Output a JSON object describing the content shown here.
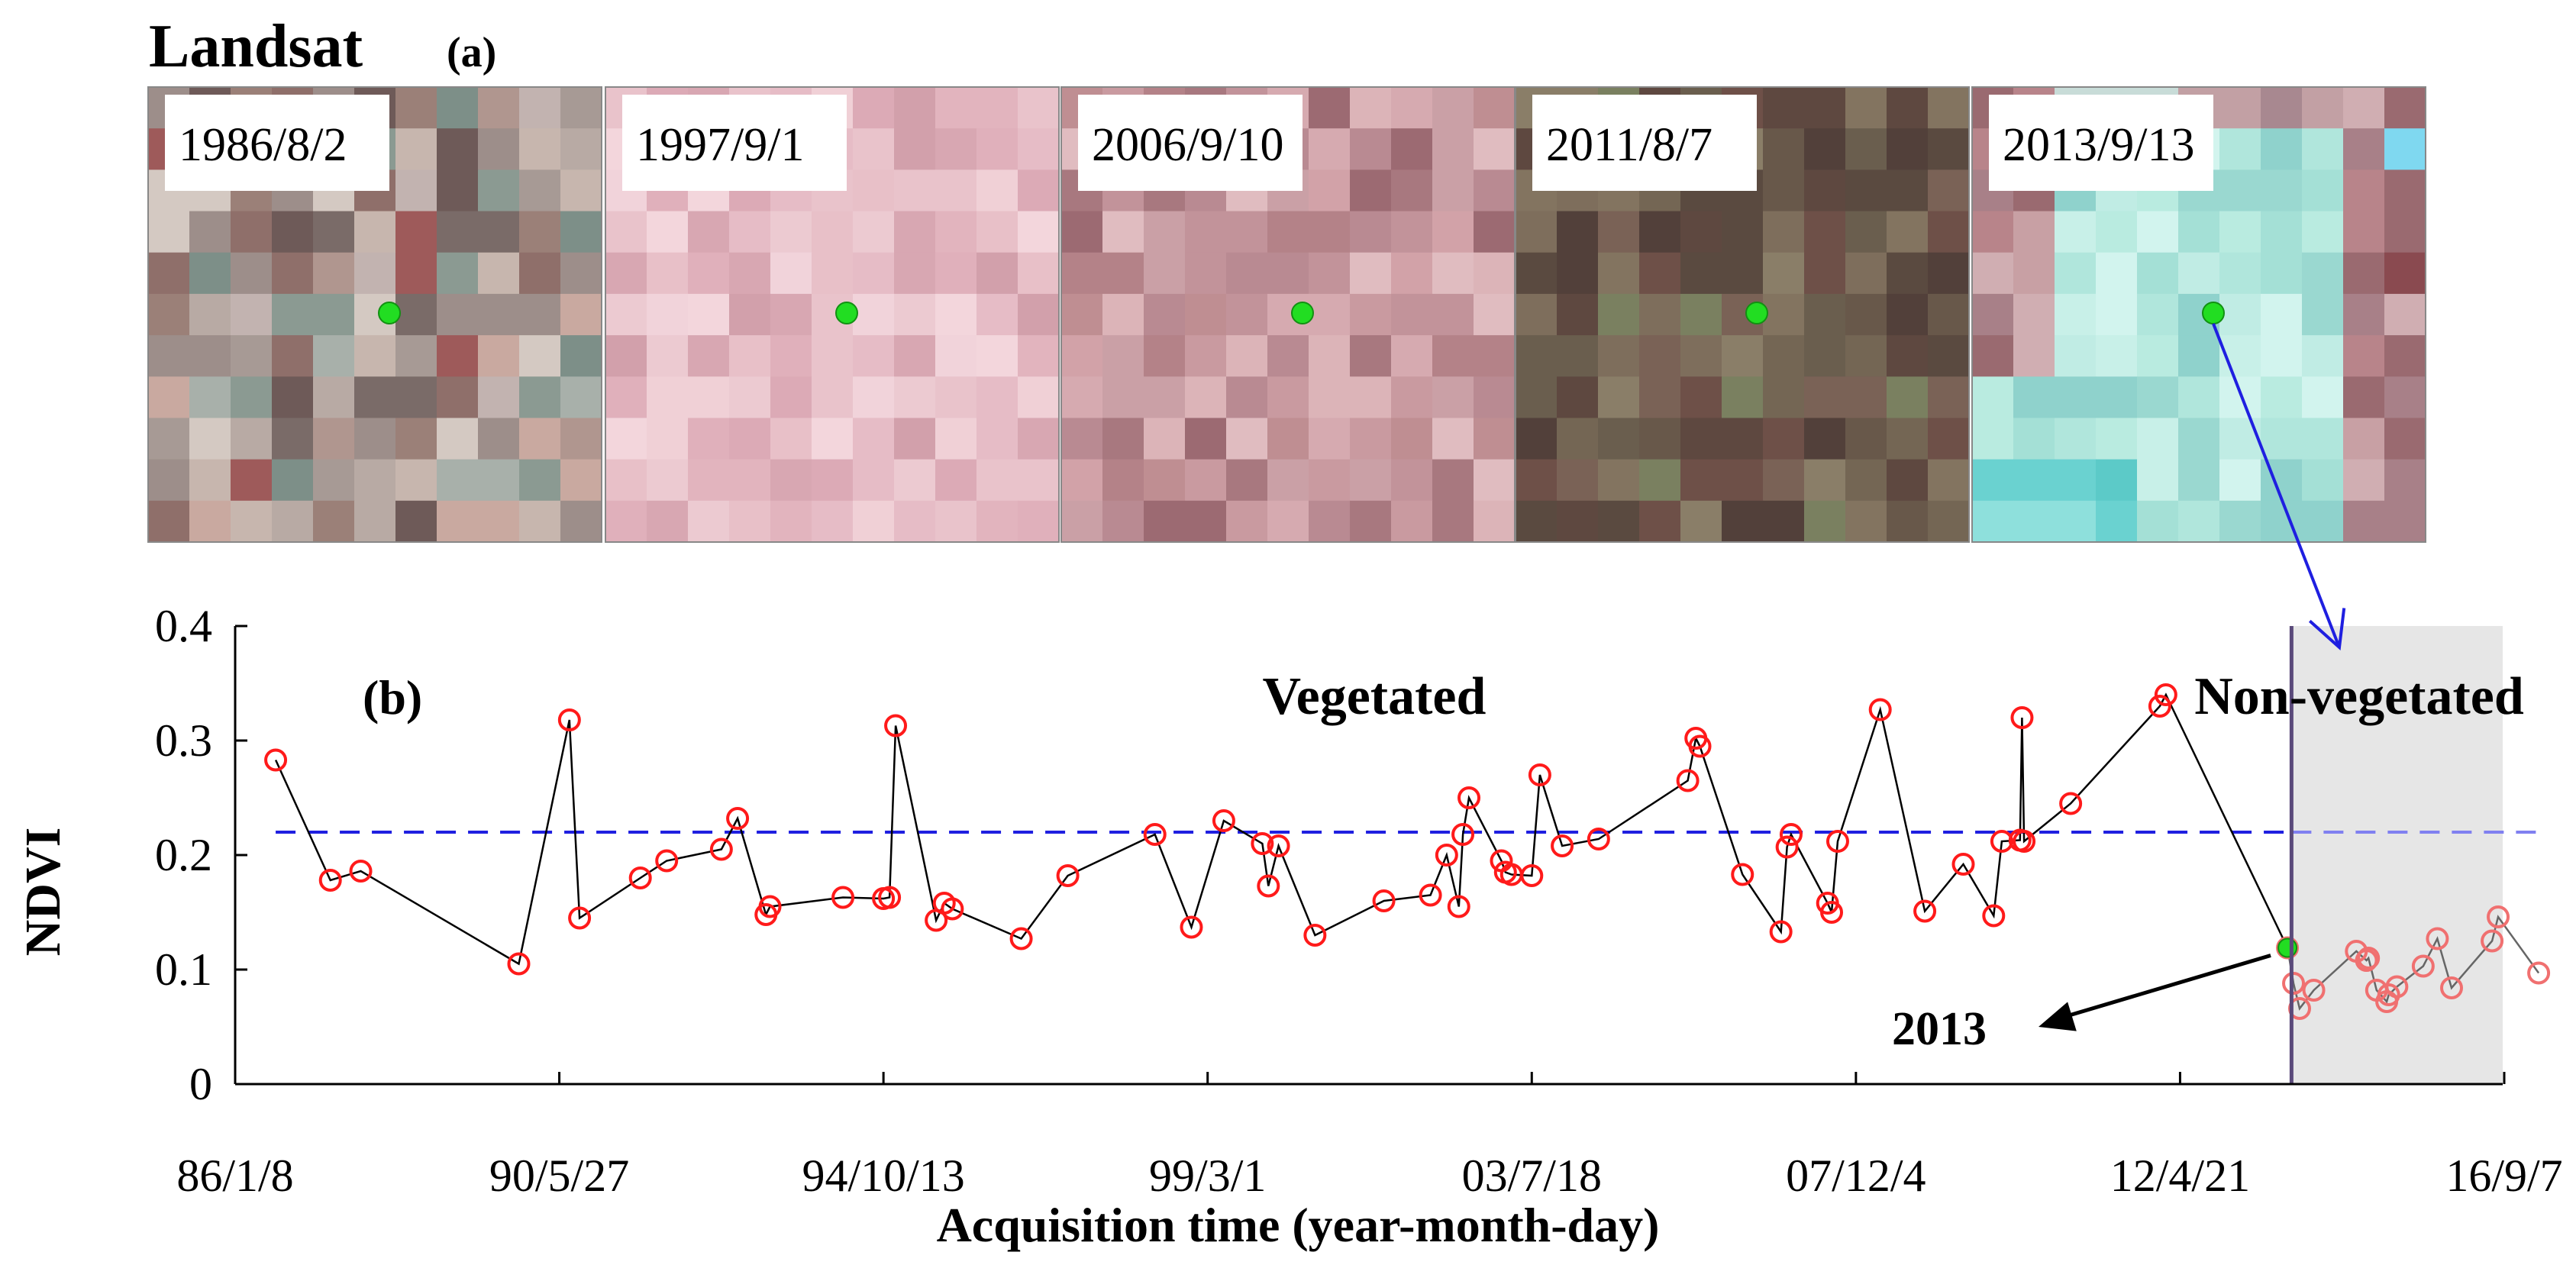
{
  "panel_a": {
    "title": "Landsat",
    "label": "(a)",
    "images": [
      {
        "date": "1986/8/2",
        "scene": "mixed"
      },
      {
        "date": "1997/9/1",
        "scene": "pink"
      },
      {
        "date": "2006/9/10",
        "scene": "mauve"
      },
      {
        "date": "2011/8/7",
        "scene": "brown"
      },
      {
        "date": "2013/9/13",
        "scene": "cyan"
      }
    ],
    "point_color": "#22dd22"
  },
  "chart_data": {
    "type": "line",
    "panel_label": "(b)",
    "xlabel": "Acquisition time (year-month-day)",
    "ylabel": "NDVI",
    "ylim": [
      0,
      0.4
    ],
    "xlim": [
      0,
      112
    ],
    "yticks": [
      "0",
      "0.1",
      "0.2",
      "0.3",
      "0.4"
    ],
    "xticks": [
      {
        "label": "86/1/8",
        "x": 0
      },
      {
        "label": "90/5/27",
        "x": 16
      },
      {
        "label": "94/10/13",
        "x": 32
      },
      {
        "label": "99/3/1",
        "x": 48
      },
      {
        "label": "03/7/18",
        "x": 64
      },
      {
        "label": "07/12/4",
        "x": 80
      },
      {
        "label": "12/4/21",
        "x": 96
      },
      {
        "label": "16/9/7",
        "x": 112
      }
    ],
    "threshold": 0.22,
    "change_x": 101.5,
    "regions": {
      "vegetated": "Vegetated",
      "non_vegetated": "Non-vegetated"
    },
    "annotation": {
      "text": "2013",
      "x": 101.3,
      "y": 0.119
    },
    "series": [
      {
        "name": "Vegetated",
        "x": [
          2,
          4.7,
          6.2,
          14,
          16.5,
          17,
          20,
          21.3,
          24,
          24.8,
          26.2,
          26.4,
          30,
          32,
          32.3,
          32.6,
          34.6,
          35,
          35.4,
          38.8,
          41.1,
          45.4,
          47.2,
          48.8,
          50.7,
          51,
          51.5,
          53.3,
          56.7,
          59,
          59.8,
          60.4,
          60.6,
          60.9,
          62.5,
          62.7,
          63,
          64,
          64.4,
          65.5,
          67.3,
          71.7,
          72.1,
          72.3,
          74.4,
          76.3,
          76.6,
          76.8,
          78.6,
          78.8,
          79.1,
          81.2,
          83.4,
          85.3,
          86.8,
          87.2,
          88.1,
          88.2,
          88.3,
          90.6,
          95,
          95.3
        ],
        "y": [
          0.283,
          0.178,
          0.186,
          0.105,
          0.318,
          0.145,
          0.18,
          0.195,
          0.205,
          0.232,
          0.148,
          0.155,
          0.163,
          0.162,
          0.163,
          0.313,
          0.143,
          0.158,
          0.153,
          0.127,
          0.182,
          0.218,
          0.137,
          0.23,
          0.21,
          0.173,
          0.208,
          0.13,
          0.16,
          0.165,
          0.2,
          0.155,
          0.218,
          0.25,
          0.195,
          0.185,
          0.183,
          0.182,
          0.27,
          0.208,
          0.214,
          0.265,
          0.302,
          0.295,
          0.183,
          0.133,
          0.207,
          0.218,
          0.158,
          0.15,
          0.212,
          0.327,
          0.151,
          0.192,
          0.147,
          0.212,
          0.213,
          0.32,
          0.212,
          0.245,
          0.33,
          0.34
        ]
      },
      {
        "name": "Non-vegetated",
        "x": [
          101.3,
          101.6,
          101.9,
          102.6,
          104.7,
          105.2,
          105.3,
          105.7,
          106.2,
          106.3,
          106.7,
          108,
          108.7,
          109.4,
          111.4,
          111.7,
          113.7
        ],
        "y": [
          0.119,
          0.088,
          0.066,
          0.082,
          0.116,
          0.108,
          0.11,
          0.082,
          0.072,
          0.078,
          0.085,
          0.103,
          0.127,
          0.084,
          0.125,
          0.146,
          0.097
        ]
      }
    ]
  }
}
